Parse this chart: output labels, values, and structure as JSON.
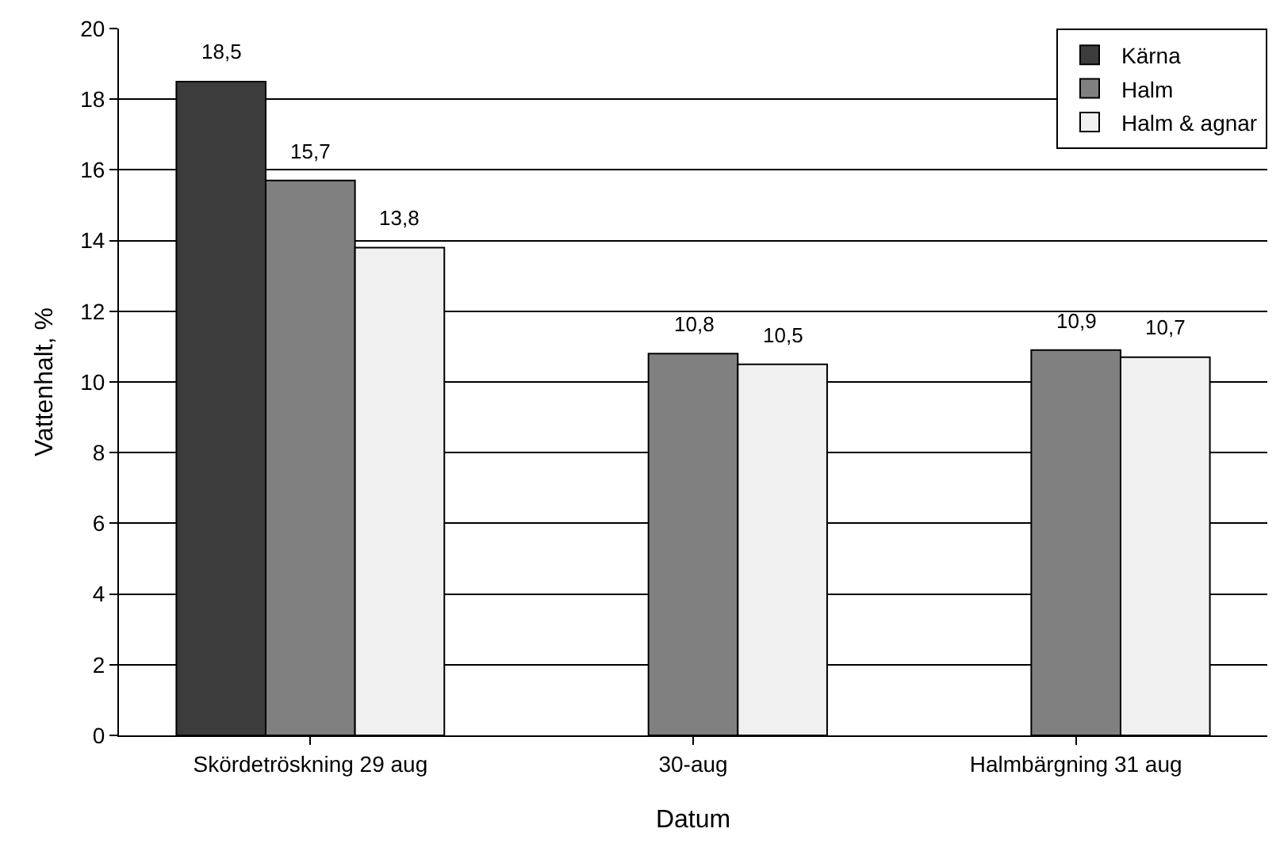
{
  "chart_data": {
    "type": "bar",
    "xlabel": "Datum",
    "ylabel": "Vattenhalt, %",
    "categories": [
      "Skördetröskning 29 aug",
      "30-aug",
      "Halmbärgning 31 aug"
    ],
    "series": [
      {
        "name": "Kärna",
        "color": "#3c3c3c",
        "values": [
          18.5,
          null,
          null
        ],
        "value_labels": [
          "18,5",
          null,
          null
        ]
      },
      {
        "name": "Halm",
        "color": "#808080",
        "values": [
          15.7,
          10.8,
          10.9
        ],
        "value_labels": [
          "15,7",
          "10,8",
          "10,9"
        ]
      },
      {
        "name": "Halm & agnar",
        "color": "#f0f0f0",
        "values": [
          13.8,
          10.5,
          10.7
        ],
        "value_labels": [
          "13,8",
          "10,5",
          "10,7"
        ]
      }
    ],
    "ylim": [
      0,
      20
    ],
    "yticks": [
      0,
      2,
      4,
      6,
      8,
      10,
      12,
      14,
      16,
      18,
      20
    ],
    "grid": "y",
    "legend": "top right"
  }
}
